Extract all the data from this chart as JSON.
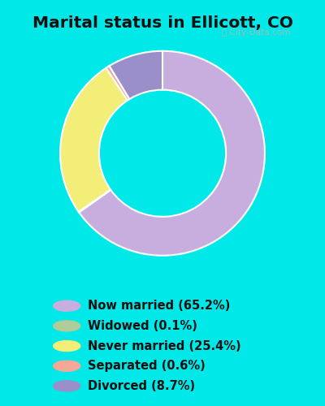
{
  "title": "Marital status in Ellicott, CO",
  "slices": [
    65.2,
    0.1,
    25.4,
    0.6,
    8.7
  ],
  "labels": [
    "Now married (65.2%)",
    "Widowed (0.1%)",
    "Never married (25.4%)",
    "Separated (0.6%)",
    "Divorced (8.7%)"
  ],
  "colors": [
    "#c8aede",
    "#b0cc98",
    "#f2ee78",
    "#f5a898",
    "#9b8fca"
  ],
  "bg_outer": "#00e8e8",
  "bg_chart": "#d8eddc",
  "watermark": "City-Data.com",
  "title_fontsize": 14.5,
  "legend_fontsize": 10.5,
  "donut_width": 0.38,
  "start_angle": 90
}
